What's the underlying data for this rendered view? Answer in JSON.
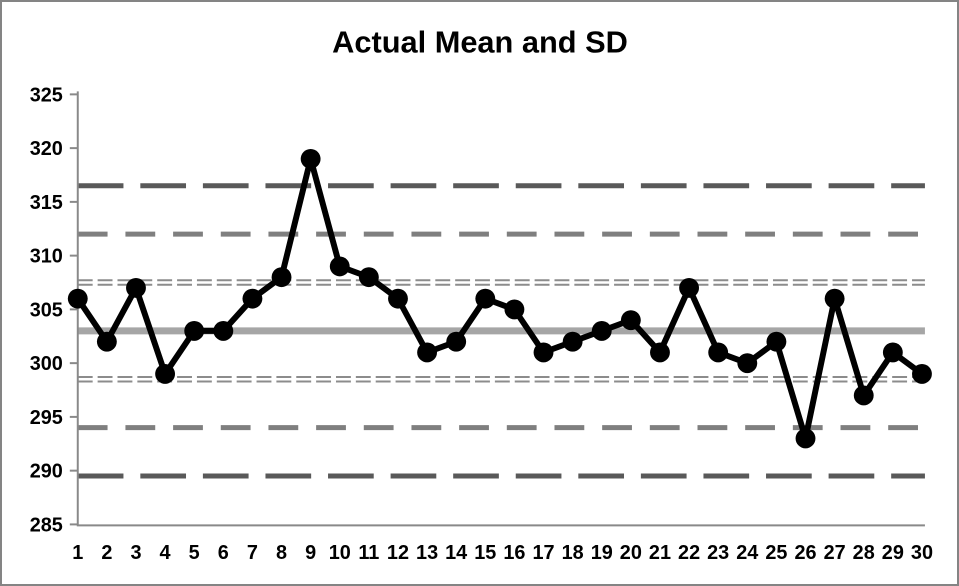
{
  "title": "Actual Mean and SD",
  "colors": {
    "series": "#000000",
    "mean_line": "#a6a6a6",
    "sd1_line": "#8c8c8c",
    "sd2_line": "#7f7f7f",
    "sd3_line": "#595959",
    "axis": "#898989",
    "text": "#000000",
    "border": "#848484",
    "background": "#ffffff"
  },
  "chart_data": {
    "type": "line",
    "title": "Actual Mean and SD",
    "x_categories": [
      1,
      2,
      3,
      4,
      5,
      6,
      7,
      8,
      9,
      10,
      11,
      12,
      13,
      14,
      15,
      16,
      17,
      18,
      19,
      20,
      21,
      22,
      23,
      24,
      25,
      26,
      27,
      28,
      29,
      30
    ],
    "series": [
      {
        "name": "Actual",
        "marker": "circle",
        "values": [
          306,
          302,
          307,
          299,
          303,
          303,
          306,
          308,
          319,
          309,
          308,
          306,
          301,
          302,
          306,
          305,
          301,
          302,
          303,
          304,
          301,
          307,
          301,
          300,
          302,
          293,
          306,
          297,
          301,
          299
        ]
      }
    ],
    "reference_lines": [
      {
        "name": "mean",
        "value": 303,
        "style": "mean"
      },
      {
        "name": "mean-plus-1sd",
        "value": 307.5,
        "style": "sd1"
      },
      {
        "name": "mean-minus-1sd",
        "value": 298.5,
        "style": "sd1"
      },
      {
        "name": "mean-plus-2sd",
        "value": 312,
        "style": "sd2"
      },
      {
        "name": "mean-minus-2sd",
        "value": 294,
        "style": "sd2"
      },
      {
        "name": "mean-plus-3sd",
        "value": 316.5,
        "style": "sd3"
      },
      {
        "name": "mean-minus-3sd",
        "value": 289.5,
        "style": "sd3"
      }
    ],
    "ylim": [
      285,
      325
    ],
    "yticks": [
      285,
      290,
      295,
      300,
      305,
      310,
      315,
      320,
      325
    ],
    "grid": false,
    "legend": false
  }
}
